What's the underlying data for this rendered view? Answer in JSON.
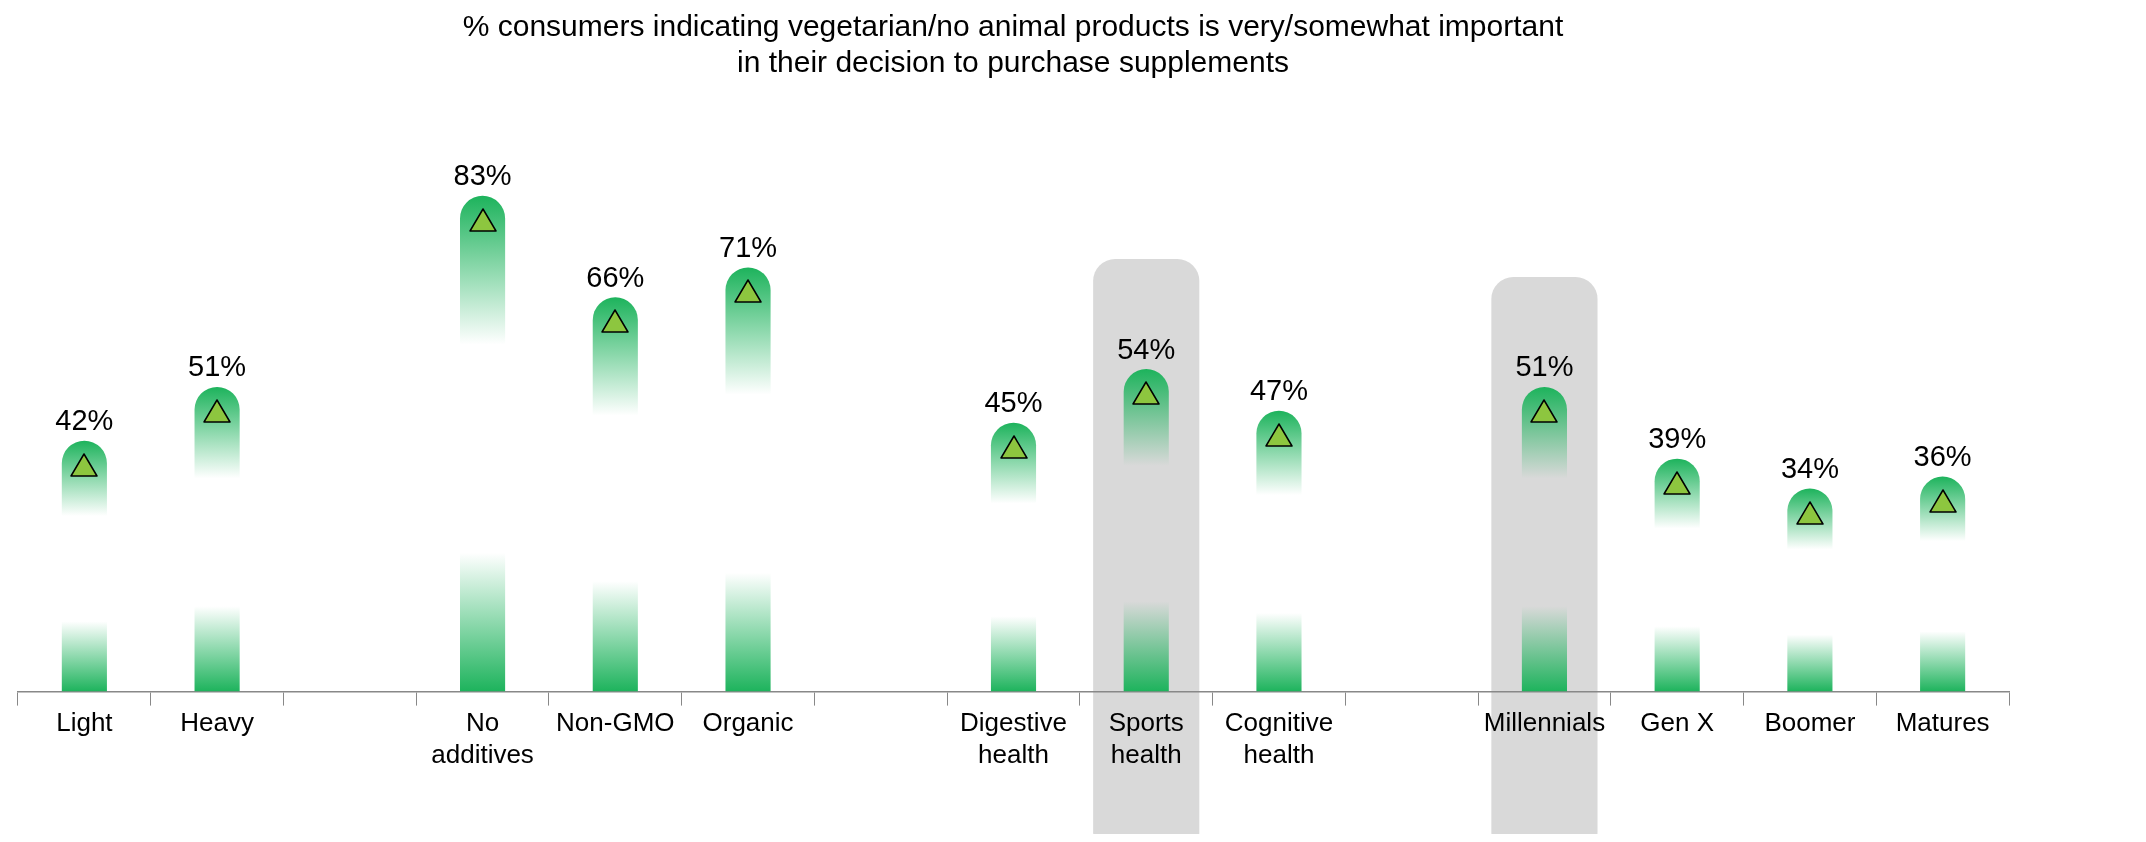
{
  "chart_data": {
    "type": "bar",
    "title": "% consumers indicating vegetarian/no animal products is very/somewhat important\nin their decision to purchase supplements",
    "categories": [
      "Light",
      "Heavy",
      null,
      "No additives",
      "Non-GMO",
      "Organic",
      null,
      "Digestive health",
      "Sports health",
      "Cognitive health",
      null,
      "Millennials",
      "Gen X",
      "Boomer",
      "Matures"
    ],
    "values": [
      42,
      51,
      null,
      83,
      66,
      71,
      null,
      45,
      54,
      47,
      null,
      51,
      39,
      34,
      36
    ],
    "value_labels": [
      "42%",
      "51%",
      null,
      "83%",
      "66%",
      "71%",
      null,
      "45%",
      "54%",
      "47%",
      null,
      "51%",
      "39%",
      "34%",
      "36%"
    ],
    "color": "#1db35c",
    "marker": "triangle",
    "bands": [
      {
        "axis": "x",
        "from": "Sports health",
        "to": "Sports health",
        "color": "#d9d9d9"
      },
      {
        "axis": "x",
        "from": "Millennials",
        "to": "Millennials",
        "color": "#d9d9d9"
      }
    ],
    "grid": false,
    "legend": false
  }
}
